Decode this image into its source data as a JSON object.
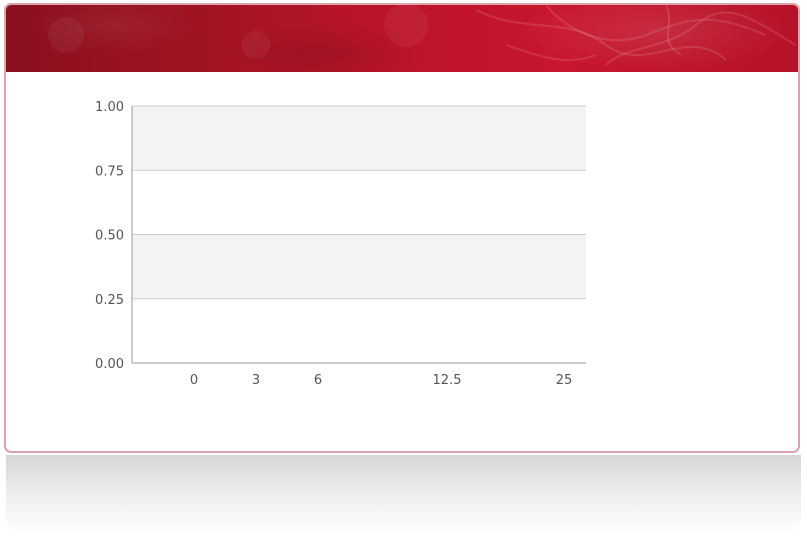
{
  "colors": {
    "banner_dark": "#8a1020",
    "banner_light": "#c8162e",
    "card_border": "#d9a4ac",
    "band_fill": "#f3f3f3",
    "grid_line": "#cccccc",
    "axis_line": "#999999",
    "tick_text": "#555555"
  },
  "chart_data": {
    "type": "bar",
    "title": "",
    "xlabel": "",
    "ylabel": "",
    "categories": [
      "0",
      "3",
      "6",
      "12.5",
      "25"
    ],
    "x": [
      0,
      3,
      6,
      12.5,
      25
    ],
    "series": [],
    "ylim": [
      0,
      1
    ],
    "y_ticks": [
      "0.00",
      "0.25",
      "0.50",
      "0.75",
      "1.00"
    ],
    "x_ticks": [
      "0",
      "3",
      "6",
      "12.5",
      "25"
    ],
    "grid": true,
    "legend": "none"
  }
}
